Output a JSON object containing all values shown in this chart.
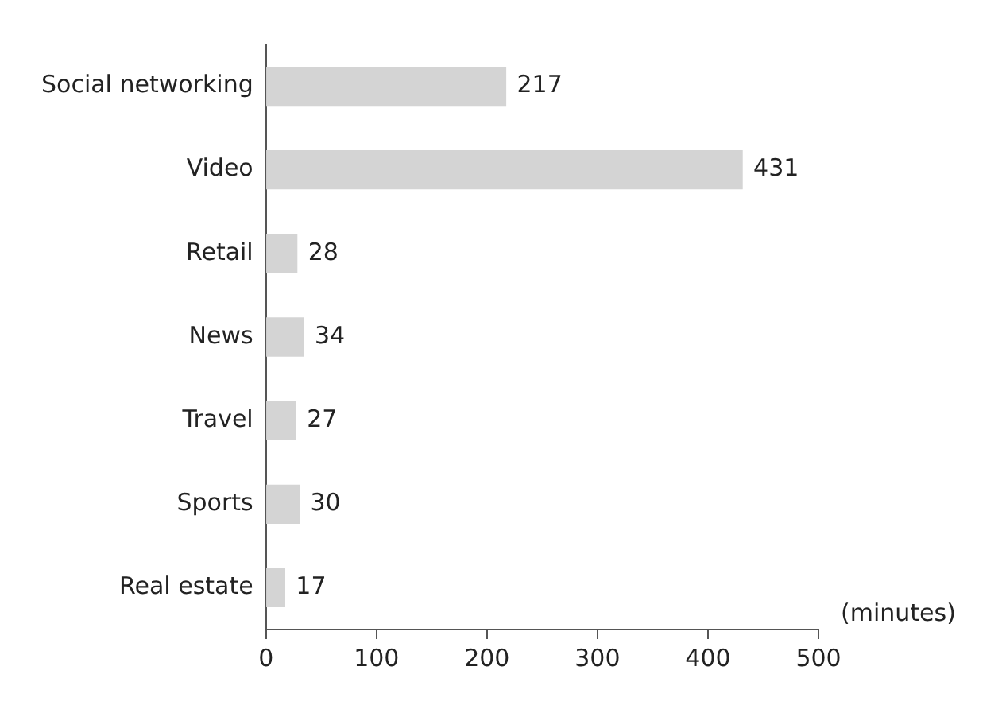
{
  "chart_data": {
    "type": "bar",
    "orientation": "horizontal",
    "xlabel": "(minutes)",
    "categories": [
      "Social networking",
      "Video",
      "Retail",
      "News",
      "Travel",
      "Sports",
      "Real estate"
    ],
    "values": [
      217,
      431,
      28,
      34,
      27,
      30,
      17
    ],
    "color": "#d4d4d4",
    "xlim": [
      0,
      500
    ],
    "xticks": [
      0,
      100,
      200,
      300,
      400,
      500
    ],
    "grid": false,
    "legend": false,
    "data_labels": true
  }
}
